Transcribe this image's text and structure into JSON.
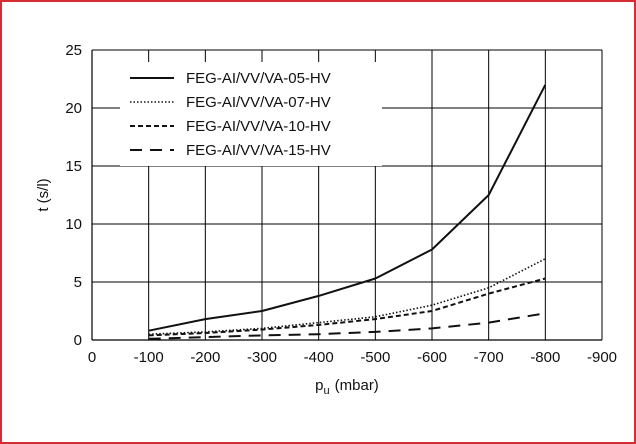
{
  "chart_data": {
    "type": "line",
    "xlabel": "p",
    "xlabel_sub": "u",
    "xlabel_unit": "(mbar)",
    "ylabel": "t (s/l)",
    "x": [
      -100,
      -200,
      -300,
      -400,
      -500,
      -600,
      -700,
      -800
    ],
    "x_ticks": [
      0,
      -100,
      -200,
      -300,
      -400,
      -500,
      -600,
      -700,
      -800,
      -900
    ],
    "xlim": [
      0,
      -900
    ],
    "y_ticks": [
      0,
      5,
      10,
      15,
      20,
      25
    ],
    "ylim": [
      0,
      25
    ],
    "grid": "vertical lines at x ticks, horizontal lines at y ticks",
    "legend_position": "top-left",
    "series": [
      {
        "name": "FEG-AI/VV/VA-05-HV",
        "style": "solid",
        "values": [
          0.8,
          1.8,
          2.5,
          3.8,
          5.3,
          7.8,
          12.5,
          22.0
        ]
      },
      {
        "name": "FEG-AI/VV/VA-07-HV",
        "style": "dotted",
        "values": [
          0.5,
          0.7,
          1.0,
          1.5,
          2.0,
          3.0,
          4.5,
          7.0
        ]
      },
      {
        "name": "FEG-AI/VV/VA-10-HV",
        "style": "short-dashed",
        "values": [
          0.4,
          0.6,
          0.9,
          1.3,
          1.8,
          2.5,
          4.0,
          5.3
        ]
      },
      {
        "name": "FEG-AI/VV/VA-15-HV",
        "style": "long-dashed",
        "values": [
          0.1,
          0.25,
          0.4,
          0.5,
          0.7,
          1.0,
          1.5,
          2.3
        ]
      }
    ]
  }
}
